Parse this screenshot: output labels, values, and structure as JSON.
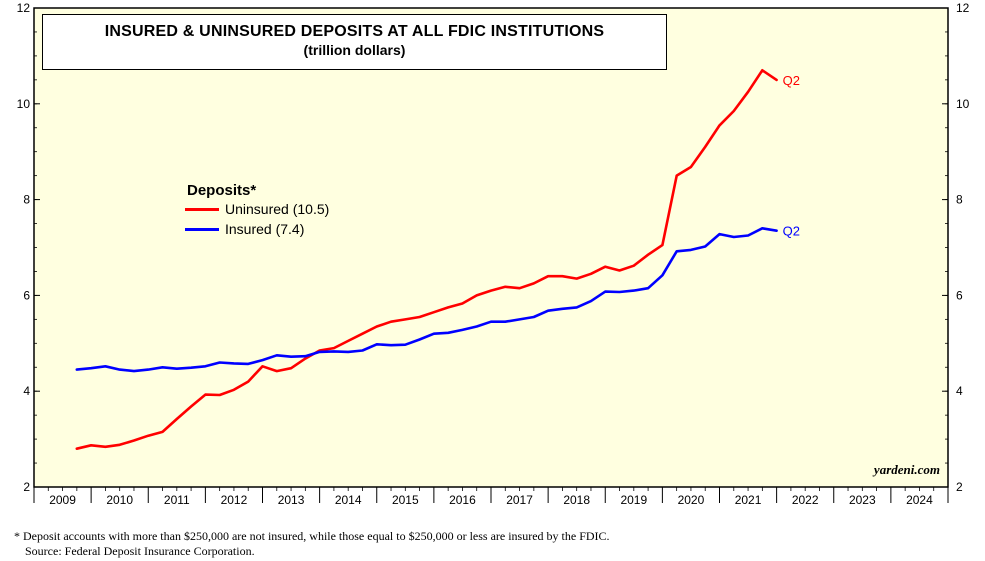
{
  "title": "INSURED & UNINSURED DEPOSITS AT ALL FDIC INSTITUTIONS",
  "subtitle": "(trillion dollars)",
  "legend": {
    "title": "Deposits*",
    "items": [
      {
        "label": "Uninsured (10.5)",
        "color": "#ff0000"
      },
      {
        "label": "Insured (7.4)",
        "color": "#0000ff"
      }
    ]
  },
  "end_labels": {
    "uninsured": "Q2",
    "insured": "Q2"
  },
  "source_label": "yardeni.com",
  "footnote": {
    "line1": "*  Deposit accounts with more than $250,000 are not insured, while those equal to $250,000 or less are insured by the FDIC.",
    "line2": "Source: Federal Deposit Insurance Corporation."
  },
  "colors": {
    "plot_background": "#ffffe0",
    "uninsured": "#ff0000",
    "insured": "#0000ff"
  },
  "chart_data": {
    "type": "line",
    "title": "INSURED & UNINSURED DEPOSITS AT ALL FDIC INSTITUTIONS",
    "subtitle": "(trillion dollars)",
    "xlim": [
      2009,
      2025
    ],
    "ylim": [
      2,
      12
    ],
    "y_ticks": [
      2,
      4,
      6,
      8,
      10,
      12
    ],
    "x_tick_labels": [
      "2009",
      "2010",
      "2011",
      "2012",
      "2013",
      "2014",
      "2015",
      "2016",
      "2017",
      "2018",
      "2019",
      "2020",
      "2021",
      "2022",
      "2023",
      "2024"
    ],
    "grid": false,
    "legend_position": "left-middle",
    "series": [
      {
        "name": "Uninsured (10.5)",
        "color": "#ff0000",
        "x": [
          2009.75,
          2010.0,
          2010.25,
          2010.5,
          2010.75,
          2011.0,
          2011.25,
          2011.5,
          2011.75,
          2012.0,
          2012.25,
          2012.5,
          2012.75,
          2013.0,
          2013.25,
          2013.5,
          2013.75,
          2014.0,
          2014.25,
          2014.5,
          2014.75,
          2015.0,
          2015.25,
          2015.5,
          2015.75,
          2016.0,
          2016.25,
          2016.5,
          2016.75,
          2017.0,
          2017.25,
          2017.5,
          2017.75,
          2018.0,
          2018.25,
          2018.5,
          2018.75,
          2019.0,
          2019.25,
          2019.5,
          2019.75,
          2020.0,
          2020.25,
          2020.5,
          2020.75,
          2021.0,
          2021.25,
          2021.5,
          2021.75,
          2022.0
        ],
        "values": [
          2.8,
          2.87,
          2.84,
          2.88,
          2.97,
          3.07,
          3.15,
          3.42,
          3.68,
          3.93,
          3.92,
          4.03,
          4.2,
          4.52,
          4.42,
          4.48,
          4.68,
          4.85,
          4.9,
          5.05,
          5.2,
          5.35,
          5.45,
          5.5,
          5.55,
          5.65,
          5.75,
          5.83,
          6.0,
          6.1,
          6.18,
          6.15,
          6.25,
          6.4,
          6.4,
          6.35,
          6.45,
          6.6,
          6.52,
          6.62,
          6.85,
          7.05,
          8.5,
          8.68,
          9.1,
          9.55,
          9.85,
          10.25,
          10.7,
          10.5
        ]
      },
      {
        "name": "Insured (7.4)",
        "color": "#0000ff",
        "x": [
          2009.75,
          2010.0,
          2010.25,
          2010.5,
          2010.75,
          2011.0,
          2011.25,
          2011.5,
          2011.75,
          2012.0,
          2012.25,
          2012.5,
          2012.75,
          2013.0,
          2013.25,
          2013.5,
          2013.75,
          2014.0,
          2014.25,
          2014.5,
          2014.75,
          2015.0,
          2015.25,
          2015.5,
          2015.75,
          2016.0,
          2016.25,
          2016.5,
          2016.75,
          2017.0,
          2017.25,
          2017.5,
          2017.75,
          2018.0,
          2018.25,
          2018.5,
          2018.75,
          2019.0,
          2019.25,
          2019.5,
          2019.75,
          2020.0,
          2020.25,
          2020.5,
          2020.75,
          2021.0,
          2021.25,
          2021.5,
          2021.75,
          2022.0
        ],
        "values": [
          4.45,
          4.48,
          4.52,
          4.45,
          4.42,
          4.45,
          4.5,
          4.47,
          4.49,
          4.52,
          4.6,
          4.58,
          4.57,
          4.65,
          4.75,
          4.72,
          4.73,
          4.82,
          4.83,
          4.82,
          4.85,
          4.98,
          4.96,
          4.97,
          5.08,
          5.2,
          5.22,
          5.28,
          5.35,
          5.45,
          5.45,
          5.5,
          5.55,
          5.68,
          5.72,
          5.75,
          5.88,
          6.08,
          6.07,
          6.1,
          6.15,
          6.42,
          6.92,
          6.95,
          7.02,
          7.28,
          7.22,
          7.25,
          7.4,
          7.35
        ]
      }
    ]
  }
}
